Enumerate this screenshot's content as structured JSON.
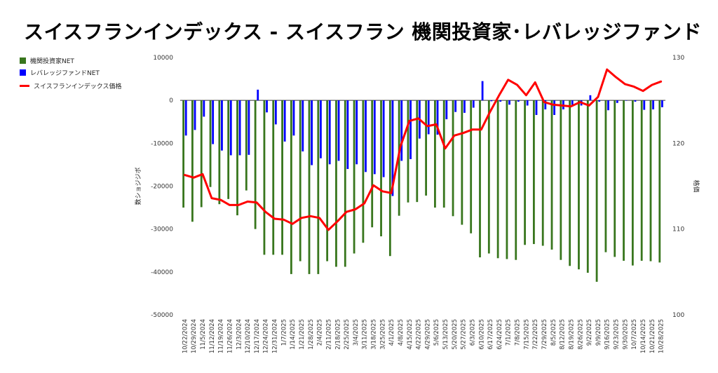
{
  "title": "スイスフランインデックス - スイスフラン 機関投資家･レバレッジファンド",
  "colors": {
    "institutional": "#38761d",
    "leveraged": "#0000ff",
    "price": "#ff0000"
  },
  "chart_data": {
    "type": "bar",
    "title": "スイスフランインデックス - スイスフラン 機関投資家･レバレッジファンド",
    "categories": [
      "10/22/2024",
      "10/29/2024",
      "11/5/2024",
      "11/12/2024",
      "11/19/2024",
      "11/26/2024",
      "12/3/2024",
      "12/10/2024",
      "12/17/2024",
      "12/24/2024",
      "12/31/2024",
      "1/7/2025",
      "1/14/2025",
      "1/21/2025",
      "1/28/2025",
      "2/4/2025",
      "2/11/2025",
      "2/18/2025",
      "2/25/2025",
      "3/4/2025",
      "3/11/2025",
      "3/18/2025",
      "3/25/2025",
      "4/1/2025",
      "4/8/2025",
      "4/15/2025",
      "4/22/2025",
      "4/29/2025",
      "5/6/2025",
      "5/13/2025",
      "5/20/2025",
      "5/27/2025",
      "6/3/2025",
      "6/10/2025",
      "6/17/2025",
      "6/24/2025",
      "7/1/2025",
      "7/8/2025",
      "7/15/2025",
      "7/22/2025",
      "7/29/2025",
      "8/5/2025",
      "8/12/2025",
      "8/19/2025",
      "8/26/2025",
      "9/2/2025",
      "9/9/2025",
      "9/16/2025",
      "9/23/2025",
      "9/30/2025",
      "10/7/2025",
      "10/14/2025",
      "10/21/2025",
      "10/28/2025"
    ],
    "series": [
      {
        "name": "機関投資家NET",
        "axis": "left",
        "kind": "bar",
        "values": [
          -25000,
          -28300,
          -24900,
          -20200,
          -24200,
          -23000,
          -26800,
          -21000,
          -30000,
          -36000,
          -36000,
          -36000,
          -40500,
          -37500,
          -40500,
          -40500,
          -37500,
          -38800,
          -38800,
          -35700,
          -33200,
          -29600,
          -31700,
          -36300,
          -26900,
          -23800,
          -23700,
          -22200,
          -25000,
          -25000,
          -27000,
          -29000,
          -31000,
          -36600,
          -35700,
          -36800,
          -37000,
          -37200,
          -33700,
          -33500,
          -33900,
          -34800,
          -37200,
          -38600,
          -39400,
          -40200,
          -42300,
          -35400,
          -36500,
          -37400,
          -38500,
          -37400,
          -37500,
          -37800
        ]
      },
      {
        "name": "レバレッジファンドNET",
        "axis": "left",
        "kind": "bar",
        "values": [
          -8200,
          -6900,
          -3800,
          -10200,
          -11700,
          -12800,
          -12800,
          -12700,
          2500,
          -2800,
          -5600,
          -9600,
          -8200,
          -11900,
          -15100,
          -13500,
          -14900,
          -14100,
          -16000,
          -14900,
          -16700,
          -17200,
          -17900,
          -22300,
          -14100,
          -13700,
          -8900,
          -7900,
          -8000,
          -4400,
          -2700,
          -2900,
          -1700,
          4500,
          -200,
          -300,
          -1000,
          -300,
          -1200,
          -3400,
          -2100,
          -3400,
          -2100,
          -1100,
          -1200,
          1200,
          -300,
          -2300,
          -600,
          0,
          -300,
          -2200,
          -2100,
          -1600
        ]
      },
      {
        "name": "スイスフランインデックス価格",
        "axis": "right",
        "kind": "line",
        "values": [
          116.3,
          116.0,
          116.4,
          113.6,
          113.4,
          112.8,
          112.8,
          113.2,
          113.1,
          112.0,
          111.2,
          111.1,
          110.6,
          111.3,
          111.5,
          111.3,
          109.9,
          110.9,
          112.0,
          112.3,
          113.0,
          115.1,
          114.4,
          114.2,
          119.6,
          122.6,
          122.9,
          122.0,
          122.2,
          119.4,
          120.9,
          121.2,
          121.6,
          121.6,
          123.7,
          125.6,
          127.4,
          126.8,
          125.6,
          127.1,
          124.8,
          124.5,
          124.4,
          124.3,
          124.8,
          124.4,
          125.4,
          128.6,
          127.7,
          126.9,
          126.6,
          126.1,
          126.8,
          127.2
        ]
      }
    ],
    "y_left": {
      "label": "数ショジジボ",
      "ylim": [
        -50000,
        10000
      ],
      "ticks": [
        10000,
        0,
        -10000,
        -20000,
        -30000,
        -40000,
        -50000
      ]
    },
    "y_right": {
      "label": "格価",
      "ylim": [
        100,
        130
      ],
      "ticks": [
        130,
        120,
        110,
        100
      ]
    },
    "grid": false,
    "legend_position": "left"
  }
}
